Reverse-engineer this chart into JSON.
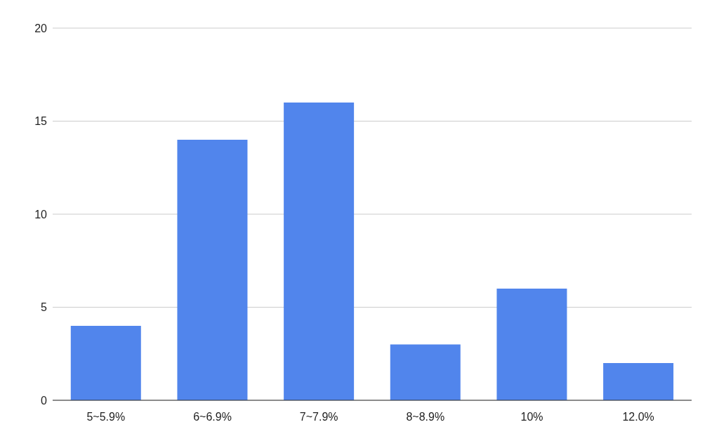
{
  "chart_data": {
    "type": "bar",
    "categories": [
      "5~5.9%",
      "6~6.9%",
      "7~7.9%",
      "8~8.9%",
      "10%",
      "12.0%"
    ],
    "values": [
      4,
      14,
      16,
      3,
      6,
      2
    ],
    "color": "#5185ec",
    "ylim": [
      0,
      20
    ],
    "yticks": [
      0,
      5,
      10,
      15,
      20
    ],
    "grid": "y"
  }
}
